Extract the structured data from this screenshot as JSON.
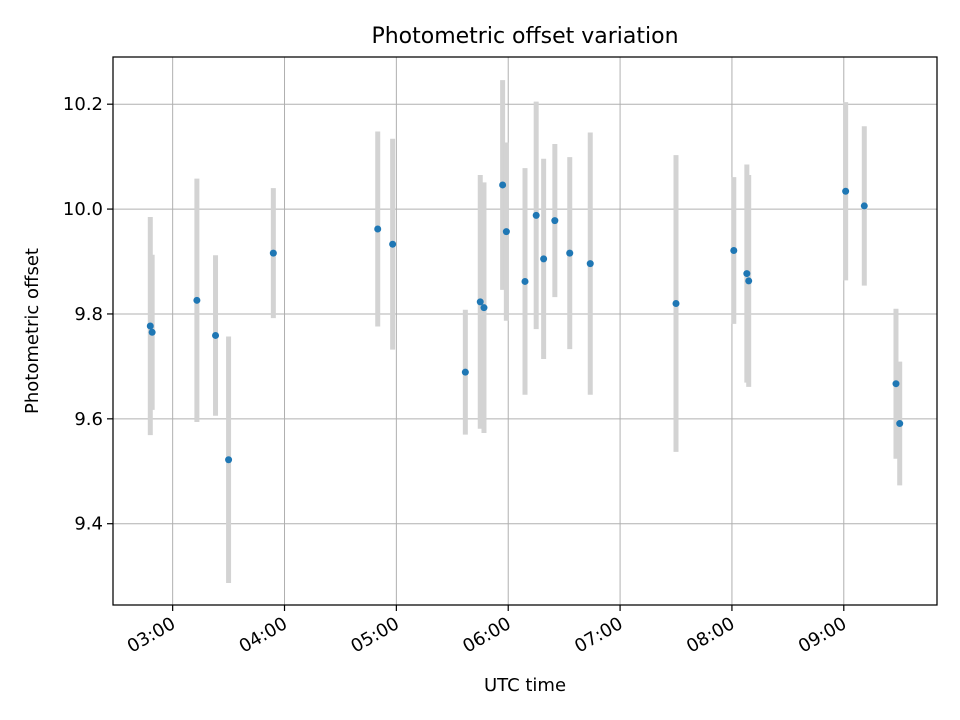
{
  "chart_data": {
    "type": "scatter",
    "title": "Photometric offset variation",
    "xlabel": "UTC time",
    "ylabel": "Photometric offset",
    "xlim": [
      "02:28",
      "09:50"
    ],
    "ylim": [
      9.245,
      10.29
    ],
    "x_ticks": [
      "03:00",
      "04:00",
      "05:00",
      "06:00",
      "07:00",
      "08:00",
      "09:00"
    ],
    "y_ticks": [
      9.4,
      9.6,
      9.8,
      10.0,
      10.2
    ],
    "grid": true,
    "colors": {
      "point": "#1f77b4",
      "errorbar": "#d3d3d3",
      "grid": "#b0b0b0",
      "axis": "#000000"
    },
    "points": [
      {
        "x": "02:48",
        "y": 9.777,
        "err": 0.208
      },
      {
        "x": "02:49",
        "y": 9.765,
        "err": 0.148
      },
      {
        "x": "03:13",
        "y": 9.826,
        "err": 0.232
      },
      {
        "x": "03:23",
        "y": 9.759,
        "err": 0.153
      },
      {
        "x": "03:30",
        "y": 9.522,
        "err": 0.235
      },
      {
        "x": "03:54",
        "y": 9.916,
        "err": 0.124
      },
      {
        "x": "04:50",
        "y": 9.962,
        "err": 0.186
      },
      {
        "x": "04:58",
        "y": 9.933,
        "err": 0.201
      },
      {
        "x": "05:37",
        "y": 9.689,
        "err": 0.119
      },
      {
        "x": "05:45",
        "y": 9.823,
        "err": 0.242
      },
      {
        "x": "05:47",
        "y": 9.812,
        "err": 0.239
      },
      {
        "x": "05:57",
        "y": 10.046,
        "err": 0.2
      },
      {
        "x": "05:59",
        "y": 9.957,
        "err": 0.17
      },
      {
        "x": "06:09",
        "y": 9.862,
        "err": 0.216
      },
      {
        "x": "06:15",
        "y": 9.988,
        "err": 0.217
      },
      {
        "x": "06:19",
        "y": 9.905,
        "err": 0.191
      },
      {
        "x": "06:25",
        "y": 9.978,
        "err": 0.146
      },
      {
        "x": "06:33",
        "y": 9.916,
        "err": 0.183
      },
      {
        "x": "06:44",
        "y": 9.896,
        "err": 0.25
      },
      {
        "x": "07:30",
        "y": 9.82,
        "err": 0.283
      },
      {
        "x": "08:01",
        "y": 9.921,
        "err": 0.14
      },
      {
        "x": "08:08",
        "y": 9.877,
        "err": 0.208
      },
      {
        "x": "08:09",
        "y": 9.863,
        "err": 0.202
      },
      {
        "x": "09:01",
        "y": 10.034,
        "err": 0.17
      },
      {
        "x": "09:11",
        "y": 10.006,
        "err": 0.152
      },
      {
        "x": "09:28",
        "y": 9.667,
        "err": 0.143
      },
      {
        "x": "09:30",
        "y": 9.591,
        "err": 0.118
      }
    ]
  }
}
